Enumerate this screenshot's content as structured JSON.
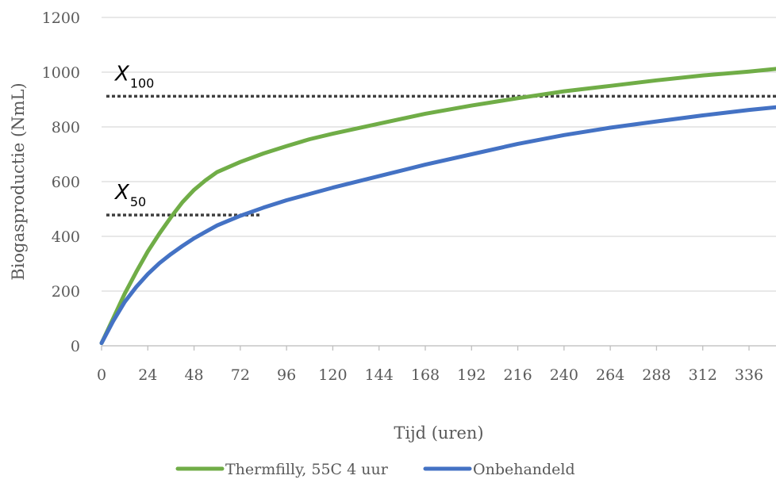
{
  "chart_data": {
    "type": "line",
    "xlabel": "Tijd (uren)",
    "ylabel": "Biogasproductie (NmL)",
    "xlim": [
      0,
      350
    ],
    "ylim": [
      0,
      1200
    ],
    "x_ticks": [
      0,
      24,
      48,
      72,
      96,
      120,
      144,
      168,
      192,
      216,
      240,
      264,
      288,
      312,
      336
    ],
    "y_ticks": [
      0,
      200,
      400,
      600,
      800,
      1000,
      1200
    ],
    "grid": "horizontal",
    "legend_position": "bottom",
    "series": [
      {
        "name": "Thermfilly, 55C 4 uur",
        "color": "#70ad47",
        "x": [
          0,
          6,
          12,
          18,
          24,
          30,
          36,
          42,
          48,
          54,
          60,
          72,
          84,
          96,
          108,
          120,
          144,
          168,
          192,
          216,
          240,
          264,
          288,
          312,
          336,
          350
        ],
        "y": [
          10,
          100,
          190,
          270,
          345,
          410,
          470,
          525,
          570,
          605,
          635,
          672,
          703,
          730,
          755,
          775,
          812,
          848,
          878,
          905,
          930,
          950,
          970,
          988,
          1002,
          1012
        ]
      },
      {
        "name": "Onbehandeld",
        "color": "#4472c4",
        "x": [
          0,
          6,
          12,
          18,
          24,
          30,
          36,
          42,
          48,
          60,
          72,
          84,
          96,
          120,
          144,
          168,
          192,
          216,
          240,
          264,
          288,
          312,
          336,
          350
        ],
        "y": [
          10,
          90,
          160,
          215,
          262,
          302,
          335,
          365,
          393,
          440,
          475,
          505,
          532,
          578,
          620,
          662,
          700,
          738,
          770,
          797,
          820,
          842,
          862,
          872
        ]
      }
    ],
    "annotations": [
      {
        "label_main": "X",
        "label_sub": "100",
        "y": 912,
        "x_start": 0,
        "x_end": 350,
        "style": "dotted"
      },
      {
        "label_main": "X",
        "label_sub": "50",
        "y": 478,
        "x_start": 0,
        "x_end": 82,
        "style": "dotted"
      }
    ]
  }
}
